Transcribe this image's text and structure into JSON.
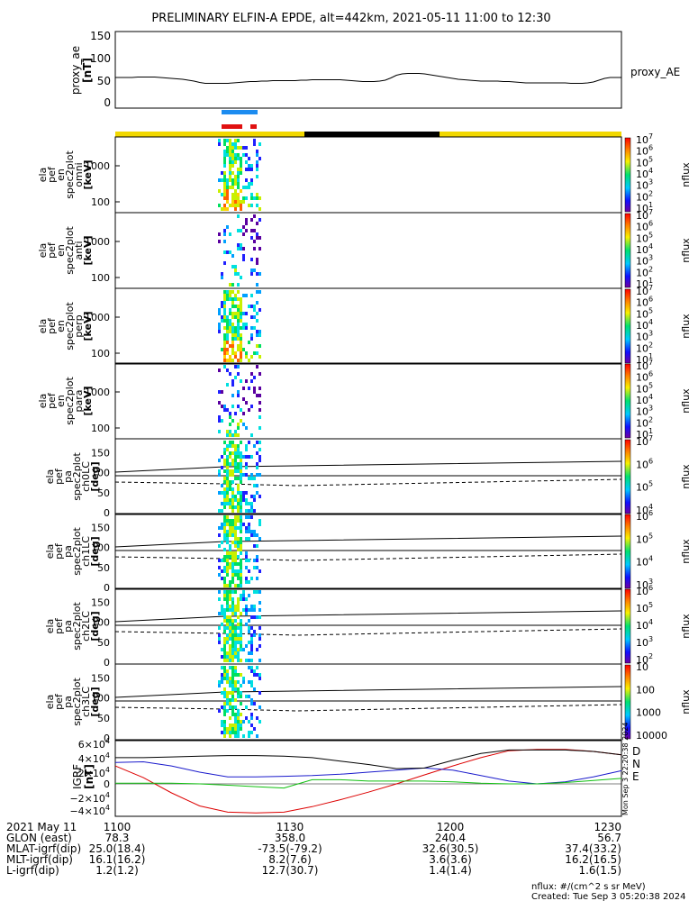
{
  "title": "PRELIMINARY ELFIN-A EPDE, alt=442km, 2021-05-11 11:00 to 12:30",
  "colors": {
    "blue_bar": "#1c8cf0",
    "red_bar": "#e01010",
    "day": "#f2d800",
    "night": "#000000",
    "B_D": "#dd0000",
    "B_N": "#1a1acc",
    "B_E": "#10c010"
  },
  "chart_data": [
    {
      "id": "proxy_ae",
      "type": "line",
      "ylabel": [
        "proxy_ae",
        "[nT]"
      ],
      "series_label": "proxy_AE",
      "yticks": [
        "150",
        "100",
        "50",
        "0"
      ],
      "ylim": [
        0,
        150
      ],
      "x": [
        0,
        1,
        2,
        3,
        4,
        5,
        6,
        7,
        8,
        9,
        10,
        11,
        12,
        13,
        14,
        15,
        16,
        17,
        18,
        19,
        20,
        21,
        22,
        23,
        24,
        25,
        26,
        27,
        28,
        29,
        30,
        31,
        32,
        33,
        34,
        35,
        36,
        37,
        38,
        39,
        40,
        41,
        42,
        43,
        44,
        45,
        46,
        47,
        48,
        49,
        50,
        51,
        52,
        53,
        54,
        55,
        56,
        57,
        58,
        59,
        60,
        61,
        62,
        63,
        64,
        65,
        66,
        67,
        68,
        69,
        70,
        71,
        72,
        73,
        74,
        75,
        76,
        77,
        78,
        79,
        80,
        81,
        82,
        83,
        84,
        85,
        86,
        87,
        88,
        89,
        90
      ],
      "values": [
        58,
        58,
        58,
        58,
        59,
        59,
        59,
        59,
        58,
        57,
        56,
        55,
        54,
        52,
        50,
        47,
        45,
        45,
        45,
        45,
        45,
        46,
        47,
        48,
        49,
        49,
        50,
        50,
        51,
        51,
        51,
        51,
        51,
        52,
        52,
        53,
        53,
        53,
        53,
        53,
        53,
        52,
        51,
        50,
        49,
        49,
        49,
        50,
        52,
        57,
        63,
        66,
        67,
        67,
        67,
        66,
        64,
        62,
        60,
        58,
        56,
        54,
        53,
        52,
        51,
        50,
        50,
        50,
        50,
        49,
        49,
        48,
        47,
        46,
        46,
        46,
        46,
        46,
        46,
        46,
        46,
        45,
        45,
        45,
        46,
        48,
        52,
        56,
        58,
        58,
        58
      ]
    },
    {
      "id": "spec_omni",
      "type": "heatmap",
      "ylabel": [
        "ela",
        "pef",
        "en",
        "spec2plot",
        "omni",
        "[keV]"
      ],
      "yticks": [
        "1000",
        "100"
      ],
      "cbar_ticks": [
        "10",
        "10",
        "10",
        "10",
        "10",
        "10",
        "10"
      ],
      "cbar_exps": [
        "1",
        "2",
        "3",
        "4",
        "5",
        "6",
        "7"
      ],
      "cbar_label": "nflux"
    },
    {
      "id": "spec_anti",
      "type": "heatmap",
      "ylabel": [
        "ela",
        "pef",
        "en",
        "spec2plot",
        "anti",
        "[keV]"
      ],
      "yticks": [
        "1000",
        "100"
      ],
      "cbar_ticks": [
        "10",
        "10",
        "10",
        "10",
        "10",
        "10",
        "10"
      ],
      "cbar_exps": [
        "1",
        "2",
        "3",
        "4",
        "5",
        "6",
        "7"
      ],
      "cbar_label": "nflux"
    },
    {
      "id": "spec_perp",
      "type": "heatmap",
      "ylabel": [
        "ela",
        "pef",
        "en",
        "spec2plot",
        "perp",
        "[keV]"
      ],
      "yticks": [
        "1000",
        "100"
      ],
      "cbar_ticks": [
        "10",
        "10",
        "10",
        "10",
        "10",
        "10",
        "10"
      ],
      "cbar_exps": [
        "1",
        "2",
        "3",
        "4",
        "5",
        "6",
        "7"
      ],
      "cbar_label": "nflux"
    },
    {
      "id": "spec_para",
      "type": "heatmap",
      "ylabel": [
        "ela",
        "pef",
        "en",
        "spec2plot",
        "para",
        "[keV]"
      ],
      "yticks": [
        "1000",
        "100"
      ],
      "cbar_ticks": [
        "10",
        "10",
        "10",
        "10",
        "10",
        "10",
        "10"
      ],
      "cbar_exps": [
        "1",
        "2",
        "3",
        "4",
        "5",
        "6",
        "7"
      ],
      "cbar_label": "nflux"
    },
    {
      "id": "pa_ch0",
      "type": "heatmap",
      "ylabel": [
        "ela",
        "pef",
        "pa",
        "spec2plot",
        "ch0LC",
        "[deg]"
      ],
      "yticks": [
        "150",
        "100",
        "50",
        "0"
      ],
      "ylim": [
        0,
        180
      ],
      "cbar_ticks": [
        "10",
        "10",
        "10",
        "10"
      ],
      "cbar_exps": [
        "4",
        "5",
        "6",
        "7"
      ],
      "cbar_label": "nflux"
    },
    {
      "id": "pa_ch1",
      "type": "heatmap",
      "ylabel": [
        "ela",
        "pef",
        "pa",
        "spec2plot",
        "ch1LC",
        "[deg]"
      ],
      "yticks": [
        "150",
        "100",
        "50",
        "0"
      ],
      "ylim": [
        0,
        180
      ],
      "cbar_ticks": [
        "10",
        "10",
        "10",
        "10"
      ],
      "cbar_exps": [
        "3",
        "4",
        "5",
        "6"
      ],
      "cbar_label": "nflux"
    },
    {
      "id": "pa_ch2",
      "type": "heatmap",
      "ylabel": [
        "ela",
        "pef",
        "pa",
        "spec2plot",
        "ch2LC",
        "[deg]"
      ],
      "yticks": [
        "150",
        "100",
        "50",
        "0"
      ],
      "ylim": [
        0,
        180
      ],
      "cbar_ticks": [
        "10",
        "10",
        "10",
        "10",
        "10"
      ],
      "cbar_exps": [
        "2",
        "3",
        "4",
        "5",
        "6"
      ],
      "cbar_label": "nflux"
    },
    {
      "id": "pa_ch3",
      "type": "heatmap",
      "ylabel": [
        "ela",
        "pef",
        "pa",
        "spec2plot",
        "ch3LC",
        "[deg]"
      ],
      "yticks": [
        "150",
        "100",
        "50",
        "0"
      ],
      "ylim": [
        0,
        180
      ],
      "cbar_ticks": [
        "10000",
        "1000",
        "100",
        "10"
      ],
      "cbar_label": "nflux"
    },
    {
      "id": "igrf",
      "type": "line",
      "ylabel": [
        "IGRF",
        "[nT]"
      ],
      "yticks": [
        "6×10",
        "4×10",
        "2×10",
        "0",
        "−2×10",
        "−4×10"
      ],
      "ytick_exp": "4",
      "ylim": [
        -45000,
        60000
      ],
      "x": [
        0,
        5,
        10,
        15,
        20,
        25,
        30,
        35,
        40,
        45,
        50,
        55,
        60,
        65,
        70,
        75,
        80,
        85,
        90
      ],
      "series": [
        {
          "name": "D",
          "values": [
            26000,
            9000,
            -13000,
            -32000,
            -41000,
            -42000,
            -41000,
            -33000,
            -23000,
            -12000,
            0,
            13000,
            26000,
            38000,
            48000,
            50000,
            50000,
            47000,
            42000
          ]
        },
        {
          "name": "N",
          "values": [
            31000,
            32000,
            26000,
            17000,
            10000,
            10000,
            11000,
            12000,
            14000,
            17000,
            20000,
            23000,
            20000,
            12000,
            4000,
            0,
            3000,
            10000,
            19000
          ]
        },
        {
          "name": "E",
          "values": [
            1000,
            1000,
            1000,
            0,
            -2000,
            -4000,
            -6000,
            6000,
            6000,
            4000,
            4000,
            4000,
            3000,
            1000,
            0,
            0,
            2000,
            5000,
            8000
          ]
        },
        {
          "name": "",
          "values": [
            38000,
            38000,
            39000,
            40000,
            41000,
            41000,
            40000,
            38000,
            33000,
            28000,
            22000,
            23000,
            34000,
            44000,
            49000,
            49000,
            49000,
            47000,
            42000
          ]
        }
      ],
      "side_stamp": "Mon Sep  3 22:20:38 2024"
    }
  ],
  "orbit_table": {
    "rows": [
      {
        "label": "2021 May 11",
        "values": [
          "1100",
          "1130",
          "1200",
          "1230"
        ]
      },
      {
        "label": "GLON (east)",
        "values": [
          "78.3",
          "358.0",
          "240.4",
          "56.7"
        ]
      },
      {
        "label": "MLAT-igrf(dip)",
        "values": [
          "25.0(18.4)",
          "-73.5(-79.2)",
          "32.6(30.5)",
          "37.4(33.2)"
        ]
      },
      {
        "label": "MLT-igrf(dip)",
        "values": [
          "16.1(16.2)",
          "8.2(7.6)",
          "3.6(3.6)",
          "16.2(16.5)"
        ]
      },
      {
        "label": "L-igrf(dip)",
        "values": [
          "1.2(1.2)",
          "12.7(30.7)",
          "1.4(1.4)",
          "1.6(1.5)"
        ]
      }
    ]
  },
  "footer": {
    "units": "nflux: #/(cm^2 s sr MeV)",
    "created": "Created: Tue Sep  3 05:20:38 2024"
  }
}
